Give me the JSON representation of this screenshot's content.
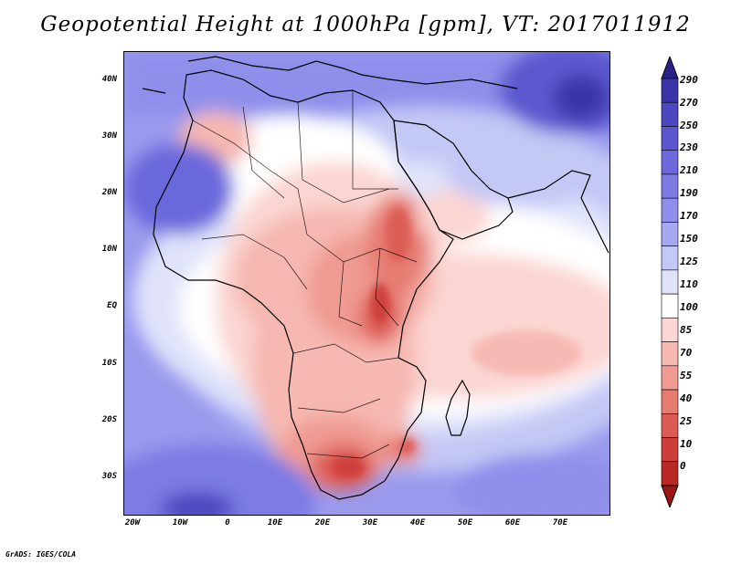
{
  "title": "Geopotential Height at 1000hPa [gpm], VT: 2017011912",
  "credit": "GrADS: IGES/COLA",
  "map": {
    "region": "Africa and surrounding oceans",
    "lat_range": [
      "35S",
      "45N"
    ],
    "lon_range": [
      "20W",
      "80E"
    ],
    "lat_labels": [
      "40N",
      "30N",
      "20N",
      "10N",
      "EQ",
      "10S",
      "20S",
      "30S"
    ],
    "lon_labels": [
      "20W",
      "10W",
      "0",
      "10E",
      "20E",
      "30E",
      "40E",
      "50E",
      "60E",
      "70E"
    ]
  },
  "colorbar": {
    "labels": [
      "290",
      "270",
      "250",
      "230",
      "210",
      "190",
      "170",
      "150",
      "125",
      "110",
      "100",
      "85",
      "70",
      "55",
      "40",
      "25",
      "10",
      "0"
    ],
    "colors": [
      "#2a2088",
      "#3a34a8",
      "#4b47bf",
      "#5b58cf",
      "#6b69dc",
      "#7c7be4",
      "#8f8feb",
      "#a6a8f0",
      "#c4c8f5",
      "#e0e3fa",
      "#ffffff",
      "#fbd6d2",
      "#f6b8b1",
      "#ef9a92",
      "#e67b72",
      "#dc5c55",
      "#cd3e3b",
      "#b82824",
      "#9b1515"
    ]
  }
}
